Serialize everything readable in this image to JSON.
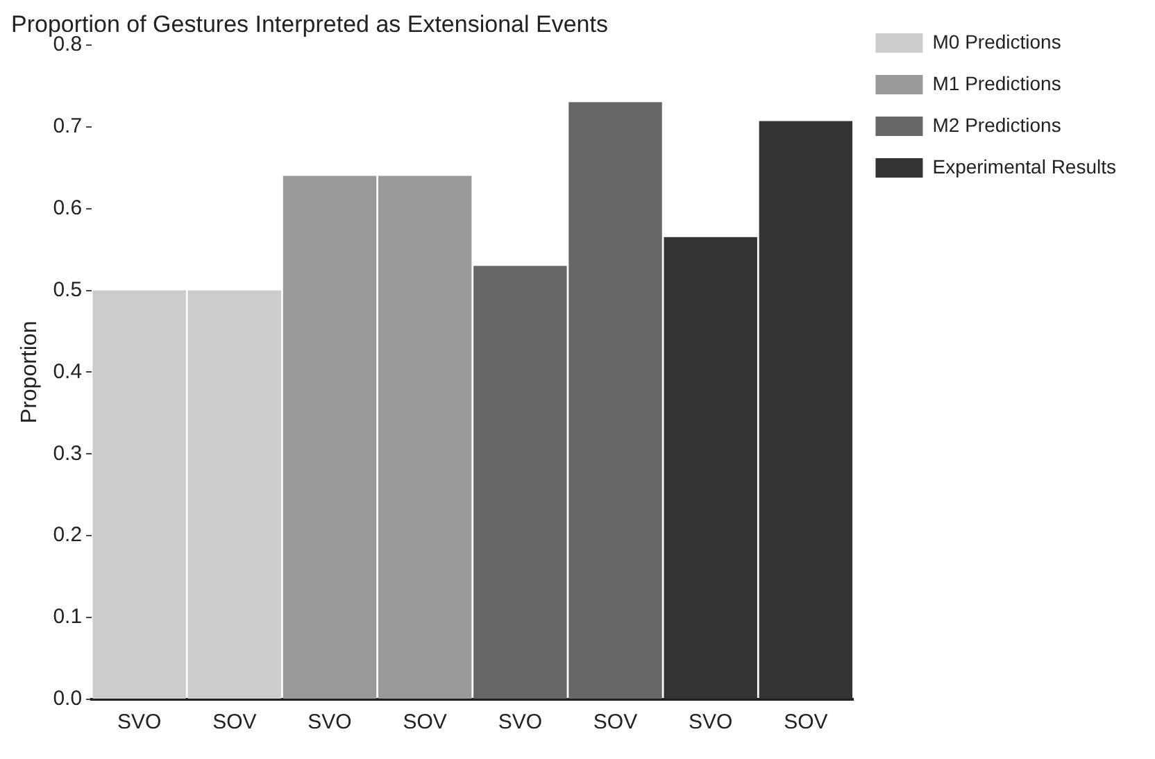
{
  "chart_data": {
    "type": "bar",
    "title": "Proportion of Gestures Interpreted as Extensional Events",
    "ylabel": "Proportion",
    "categories": [
      "SVO",
      "SOV",
      "SVO",
      "SOV",
      "SVO",
      "SOV",
      "SVO",
      "SOV"
    ],
    "series": [
      {
        "name": "M0 Predictions",
        "color": "#cccccc",
        "values": [
          0.5,
          0.5,
          null,
          null,
          null,
          null,
          null,
          null
        ]
      },
      {
        "name": "M1 Predictions",
        "color": "#999999",
        "values": [
          null,
          null,
          0.64,
          0.64,
          null,
          null,
          null,
          null
        ]
      },
      {
        "name": "M2 Predictions",
        "color": "#666666",
        "values": [
          null,
          null,
          null,
          null,
          0.53,
          0.73,
          null,
          null
        ]
      },
      {
        "name": "Experimental Results",
        "color": "#333333",
        "values": [
          null,
          null,
          null,
          null,
          null,
          null,
          0.565,
          0.707
        ]
      }
    ],
    "ylim": [
      0,
      0.8
    ],
    "yticks": [
      {
        "value": 0,
        "label": "0.0"
      },
      0.1,
      0.2,
      0.3,
      0.4,
      0.5,
      0.6,
      0.7,
      0.8
    ],
    "grid": false,
    "legend": "right"
  }
}
